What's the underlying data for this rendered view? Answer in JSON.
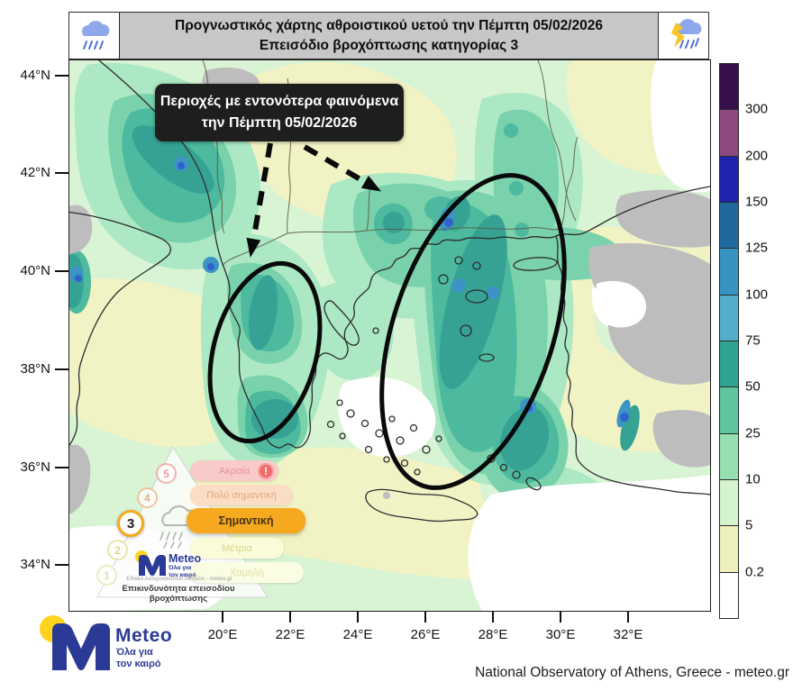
{
  "header": {
    "title_line1": "Προγνωστικός χάρτης αθροιστικού υετού την Πέμπτη 05/02/2026",
    "title_line2": "Επεισόδιο βροχόπτωσης κατηγορίας 3",
    "left_icon": "rain-cloud-icon",
    "right_icon": "storm-cloud-icon"
  },
  "map": {
    "lat_ticks": [
      "44°N",
      "42°N",
      "40°N",
      "38°N",
      "36°N",
      "34°N"
    ],
    "lon_ticks": [
      "20°E",
      "22°E",
      "24°E",
      "26°E",
      "28°E",
      "30°E",
      "32°E"
    ],
    "annotation": {
      "line1": "Περιοχές με εντονότερα φαινόμενα",
      "line2": "την Πέμπτη 05/02/2026"
    },
    "fill_colors": {
      "none": "#ffffff",
      "0.2-5": "#f2f3c4",
      "5-10": "#d9f4d4",
      "10-25": "#abe8c3",
      "25-50": "#79d2ab",
      "50-75": "#4db99e",
      "75-100": "#36a294",
      "100-125": "#3d93c5",
      "125-150": "#2f62cc",
      "no_data_gray": "#bdbdbd"
    }
  },
  "legend": {
    "labels": [
      "300",
      "200",
      "150",
      "125",
      "100",
      "75",
      "50",
      "25",
      "10",
      "5",
      "0.2"
    ],
    "colors_top_to_bottom": [
      "#38104e",
      "#8d4a7e",
      "#1f23af",
      "#20699f",
      "#3794c2",
      "#52aec9",
      "#2ea493",
      "#5ec59e",
      "#96dfb1",
      "#d5f3cf",
      "#eef0bb",
      "#ffffff"
    ]
  },
  "pyramid": {
    "levels": [
      {
        "number": "5",
        "label": "Ακραία",
        "pill_color": "#f9caca",
        "text_color": "#e49595",
        "badge": "!"
      },
      {
        "number": "4",
        "label": "Πολύ σημαντική",
        "pill_color": "#fbdcc5",
        "text_color": "#e2a87d"
      },
      {
        "number": "3",
        "label": "Σημαντική",
        "pill_color": "#f6a81e",
        "text_color": "#473414",
        "active": true
      },
      {
        "number": "2",
        "label": "Μέτρια",
        "pill_color": "#fafbd9",
        "text_color": "#d6d68c"
      },
      {
        "number": "1",
        "label": "Χαμηλή",
        "pill_color": "#fbfce4",
        "text_color": "#dfe1a6"
      }
    ],
    "caption": "Επικινδυνότητα επεισοδίου βροχόπτωσης",
    "logo": {
      "name": "Meteo",
      "tagline_line1": "Όλα για",
      "tagline_line2": "τον καιρό",
      "org": "Εθνικό Αστεροσκοπείο Αθηνών - meteo.gr"
    }
  },
  "footer": {
    "logo": {
      "name": "Meteo",
      "tagline_line1": "Όλα για",
      "tagline_line2": "τον καιρό"
    },
    "attribution": "National Observatory of Athens, Greece - meteo.gr"
  },
  "brand_colors": {
    "meteo_blue": "#2b3a97",
    "meteo_yellow": "#ffd21e",
    "active_orange": "#f6a81e",
    "alert_red": "#f26b6b"
  }
}
